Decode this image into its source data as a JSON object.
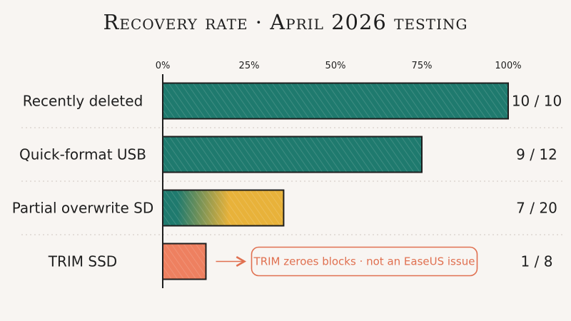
{
  "title": "Recovery rate · April 2026 testing",
  "colors": {
    "background": "#f8f5f2",
    "teal": "#1f7a6e",
    "amber": "#e8b23a",
    "coral": "#ee8060",
    "note": "#e07050",
    "ink": "#1e1e1e"
  },
  "chart_data": {
    "type": "bar",
    "orientation": "horizontal",
    "title": "Recovery rate · April 2026 testing",
    "xlim": [
      0,
      100
    ],
    "x_ticks": [
      "0%",
      "25%",
      "50%",
      "75%",
      "100%"
    ],
    "categories": [
      "Recently deleted",
      "Quick-format USB",
      "Partial overwrite SD",
      "TRIM SSD"
    ],
    "recovered": [
      10,
      9,
      7,
      1
    ],
    "tested": [
      10,
      12,
      20,
      8
    ],
    "values": [
      100,
      75,
      35,
      12.5
    ],
    "value_labels": [
      "10 / 10",
      "9 / 12",
      "7 / 20",
      "1 / 8"
    ],
    "bar_styles": [
      "teal",
      "teal",
      "teal-to-amber",
      "coral"
    ],
    "annotation": {
      "category": "TRIM SSD",
      "text": "TRIM zeroes blocks · not an EaseUS issue"
    },
    "grid": "horizontal dotted separators",
    "legend": "none"
  }
}
